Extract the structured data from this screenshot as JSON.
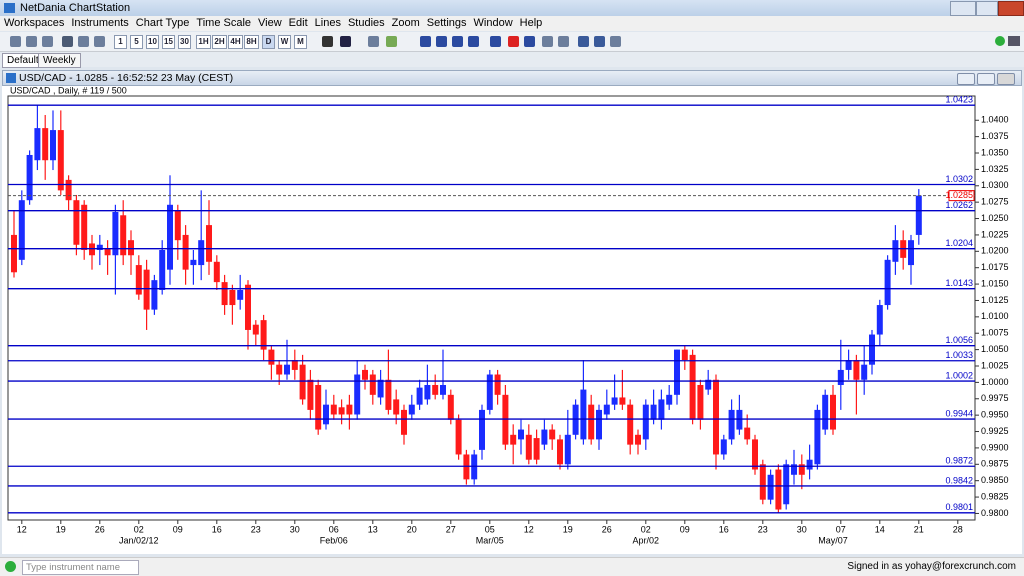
{
  "window": {
    "title": "NetDania ChartStation"
  },
  "menu": [
    "Workspaces",
    "Instruments",
    "Chart Type",
    "Time Scale",
    "View",
    "Edit",
    "Lines",
    "Studies",
    "Zoom",
    "Settings",
    "Window",
    "Help"
  ],
  "toolbar": {
    "timeframes": [
      "1",
      "5",
      "10",
      "15",
      "30",
      "1H",
      "2H",
      "4H",
      "8H",
      "D",
      "W",
      "M"
    ]
  },
  "tabs": [
    "Default",
    "Weekly"
  ],
  "chart_window": {
    "title": "USD/CAD - 1.0285 - 16:52:52  23 May (CEST)"
  },
  "status": {
    "search_placeholder": "Type instrument name",
    "signed_in": "Signed in as yohay@forexcrunch.com"
  },
  "chart_data": {
    "type": "candlestick",
    "title": "USD/CAD , Daily, # 119 / 500",
    "up_color": "#1a2cff",
    "down_color": "#ff1a1a",
    "level_color": "#0000c8",
    "categories": [
      null,
      "12",
      null,
      null,
      null,
      null,
      "19",
      null,
      null,
      null,
      null,
      "26",
      null,
      null,
      null,
      null,
      "02",
      null,
      null,
      null,
      null,
      "09",
      null,
      null,
      null,
      null,
      "16",
      null,
      null,
      null,
      null,
      "23",
      null,
      null,
      null,
      null,
      "30",
      null,
      null,
      null,
      null,
      "06",
      null,
      null,
      null,
      null,
      "13",
      null,
      null,
      null,
      null,
      "20",
      null,
      null,
      null,
      null,
      "27",
      null,
      null,
      null,
      null,
      "05",
      null,
      null,
      null,
      null,
      "12",
      null,
      null,
      null,
      null,
      "19",
      null,
      null,
      null,
      null,
      "26",
      null,
      null,
      null,
      null,
      "02",
      null,
      null,
      null,
      null,
      "09",
      null,
      null,
      null,
      null,
      "16",
      null,
      null,
      null,
      null,
      "23",
      null,
      null,
      null,
      null,
      "30",
      null,
      null,
      null,
      null,
      "07",
      null,
      null,
      null,
      null,
      "14",
      null,
      null,
      null,
      null,
      "21",
      null,
      null,
      null,
      null,
      "28"
    ],
    "x_sublabels": [
      null,
      null,
      null,
      null,
      null,
      null,
      null,
      null,
      null,
      null,
      null,
      null,
      null,
      null,
      null,
      null,
      "Jan/02/12",
      null,
      null,
      null,
      null,
      null,
      null,
      null,
      null,
      null,
      null,
      null,
      null,
      null,
      null,
      null,
      null,
      null,
      null,
      null,
      null,
      null,
      null,
      null,
      null,
      "Feb/06",
      null,
      null,
      null,
      null,
      null,
      null,
      null,
      null,
      null,
      null,
      null,
      null,
      null,
      null,
      null,
      null,
      null,
      null,
      null,
      "Mar/05",
      null,
      null,
      null,
      null,
      null,
      null,
      null,
      null,
      null,
      null,
      null,
      null,
      null,
      null,
      null,
      null,
      null,
      null,
      null,
      "Apr/02",
      null,
      null,
      null,
      null,
      null,
      null,
      null,
      null,
      null,
      null,
      null,
      null,
      null,
      null,
      null,
      null,
      null,
      null,
      null,
      null,
      null,
      null,
      null,
      "May/07",
      null,
      null,
      null,
      null,
      null,
      null,
      null,
      null,
      null,
      null,
      null,
      null,
      null,
      null,
      null
    ],
    "open": [
      1.0225,
      1.0187,
      1.0278,
      1.0339,
      1.0388,
      1.0339,
      1.0385,
      1.0309,
      1.0278,
      1.0271,
      1.0212,
      1.0202,
      1.0204,
      1.0194,
      1.0255,
      1.0217,
      1.0179,
      1.0172,
      1.0111,
      1.0141,
      1.0172,
      1.0263,
      1.0225,
      1.0179,
      1.0179,
      1.024,
      1.0184,
      1.0153,
      1.0141,
      1.0126,
      1.0149,
      1.0088,
      1.0095,
      1.005,
      1.0027,
      1.0012,
      1.0034,
      1.0027,
      1.0004,
      0.9996,
      0.9936,
      0.9966,
      0.9962,
      0.9966,
      0.9951,
      1.0019,
      1.0012,
      0.9977,
      1.0004,
      0.9974,
      0.9958,
      0.9951,
      0.9966,
      0.9974,
      0.9996,
      0.9981,
      0.9981,
      0.9943,
      0.989,
      0.9852,
      0.9897,
      0.9958,
      1.0012,
      0.9981,
      0.992,
      0.9913,
      0.992,
      0.9915,
      0.9905,
      0.9928,
      0.9913,
      0.9875,
      0.992,
      0.9913,
      0.9966,
      0.9913,
      0.9951,
      0.9966,
      0.9977,
      0.9966,
      0.992,
      0.9913,
      0.9943,
      0.9943,
      0.9966,
      0.9981,
      1.005,
      1.0042,
      0.9996,
      0.9989,
      1.0004,
      0.989,
      0.9913,
      0.9928,
      0.9931,
      0.9913,
      0.9875,
      0.9821,
      0.9867,
      0.9814,
      0.9859,
      0.9875,
      0.9867,
      0.9875,
      0.9928,
      0.9981,
      0.9996,
      1.0019,
      1.0034,
      1.0004,
      1.0027,
      1.0073,
      1.0118,
      1.0184,
      1.0217,
      1.0179,
      1.0225,
      null,
      null,
      null,
      null,
      null
    ],
    "high": [
      1.0263,
      1.0293,
      1.0354,
      1.0423,
      1.0408,
      1.0415,
      1.0415,
      1.0316,
      1.0286,
      1.0278,
      1.0225,
      1.0225,
      1.0217,
      1.0271,
      1.0278,
      1.0232,
      1.0194,
      1.0187,
      1.0164,
      1.0217,
      1.0316,
      1.0271,
      1.024,
      1.0202,
      1.0293,
      1.0278,
      1.0194,
      1.0164,
      1.0149,
      1.0164,
      1.0156,
      1.0095,
      1.0103,
      1.0057,
      1.0034,
      1.0065,
      1.005,
      1.0042,
      1.0019,
      1.0004,
      0.9989,
      0.9981,
      0.9974,
      0.9981,
      1.0034,
      1.0027,
      1.0019,
      1.0019,
      1.005,
      0.9989,
      0.9966,
      0.9981,
      1.0004,
      1.0027,
      1.0012,
      1.005,
      0.9989,
      0.9951,
      0.9897,
      0.9897,
      0.9966,
      1.0019,
      1.0019,
      0.9996,
      0.9936,
      0.9943,
      0.9936,
      0.9928,
      0.9943,
      0.9936,
      0.992,
      0.9958,
      0.9974,
      1.0034,
      0.9981,
      0.9966,
      0.9989,
      1.0012,
      1.0019,
      0.9974,
      0.9928,
      0.9974,
      0.9989,
      0.9989,
      0.9996,
      1.005,
      1.0057,
      1.005,
      1.0004,
      1.0019,
      1.0012,
      0.992,
      0.9974,
      0.9981,
      0.9951,
      0.992,
      0.9882,
      0.9867,
      0.9875,
      0.9882,
      0.9897,
      0.989,
      0.9905,
      0.9966,
      0.9989,
      0.9996,
      1.0065,
      1.005,
      1.0042,
      1.0057,
      1.008,
      1.0126,
      1.0194,
      1.024,
      1.0232,
      1.0225,
      1.0295,
      null,
      null,
      null,
      null,
      null
    ],
    "low": [
      1.016,
      1.0179,
      1.0271,
      1.0324,
      1.0309,
      1.0324,
      1.0286,
      1.0263,
      1.0194,
      1.0187,
      1.0172,
      1.0179,
      1.0164,
      1.0134,
      1.0179,
      1.0164,
      1.0126,
      1.008,
      1.0103,
      1.0134,
      1.0149,
      1.0187,
      1.0149,
      1.0149,
      1.0156,
      1.0164,
      1.0141,
      1.0103,
      1.0088,
      1.0111,
      1.005,
      1.0057,
      1.0034,
      1.0004,
      0.9996,
      1.0004,
      1.0004,
      0.9966,
      0.9943,
      0.992,
      0.9928,
      0.9943,
      0.9936,
      0.9928,
      0.9943,
      0.9989,
      0.9966,
      0.9966,
      0.9951,
      0.9936,
      0.9905,
      0.9943,
      0.9958,
      0.9966,
      0.9974,
      0.9974,
      0.9936,
      0.9882,
      0.9844,
      0.9844,
      0.9882,
      0.9951,
      0.9966,
      0.9897,
      0.9875,
      0.989,
      0.9875,
      0.9875,
      0.9897,
      0.9897,
      0.9867,
      0.9867,
      0.9913,
      0.9905,
      0.9905,
      0.9897,
      0.9943,
      0.9958,
      0.9958,
      0.989,
      0.989,
      0.9897,
      0.9936,
      0.9928,
      0.9958,
      0.9966,
      1.0019,
      0.9936,
      0.9928,
      0.9981,
      0.9867,
      0.9882,
      0.9905,
      0.992,
      0.9905,
      0.9859,
      0.9814,
      0.9814,
      0.98,
      0.9806,
      0.9844,
      0.9837,
      0.9852,
      0.9867,
      0.992,
      0.992,
      0.9958,
      1.0004,
      0.9951,
      0.9981,
      1.0012,
      1.0057,
      1.0111,
      1.0164,
      1.0172,
      1.0149,
      1.021,
      null,
      null,
      null,
      null,
      null
    ],
    "close": [
      1.0168,
      1.0278,
      1.0347,
      1.0388,
      1.0339,
      1.0385,
      1.0293,
      1.0278,
      1.021,
      1.0202,
      1.0194,
      1.021,
      1.0194,
      1.026,
      1.0194,
      1.0194,
      1.0134,
      1.0111,
      1.0156,
      1.0202,
      1.0271,
      1.0217,
      1.0172,
      1.0187,
      1.0217,
      1.0184,
      1.0153,
      1.0118,
      1.0118,
      1.0141,
      1.008,
      1.0073,
      1.005,
      1.0027,
      1.0012,
      1.0027,
      1.0019,
      0.9974,
      0.9958,
      0.9928,
      0.9966,
      0.9951,
      0.9951,
      0.9951,
      1.0012,
      1.0004,
      0.9981,
      1.0004,
      0.9958,
      0.9951,
      0.992,
      0.9966,
      0.9992,
      0.9996,
      0.9981,
      0.9996,
      0.9943,
      0.989,
      0.9852,
      0.989,
      0.9958,
      1.0012,
      0.9981,
      0.9905,
      0.9905,
      0.9928,
      0.9882,
      0.9882,
      0.9928,
      0.9913,
      0.9875,
      0.992,
      0.9966,
      0.9989,
      0.9913,
      0.9958,
      0.9966,
      0.9977,
      0.9966,
      0.9905,
      0.9905,
      0.9966,
      0.9966,
      0.9974,
      0.9981,
      1.005,
      1.0034,
      0.9943,
      0.9943,
      1.0004,
      0.989,
      0.9913,
      0.9958,
      0.9958,
      0.9913,
      0.9867,
      0.9821,
      0.9859,
      0.9806,
      0.9875,
      0.9875,
      0.9859,
      0.9882,
      0.9958,
      0.9981,
      0.9928,
      1.0019,
      1.0034,
      1.0004,
      1.0027,
      1.0073,
      1.0118,
      1.0187,
      1.0217,
      1.019,
      1.0217,
      1.0285,
      null,
      null,
      null,
      null,
      null
    ],
    "levels": [
      1.0423,
      1.0302,
      1.0262,
      1.0204,
      1.0143,
      1.0056,
      1.0033,
      1.0002,
      0.9944,
      0.9872,
      0.9842,
      0.9801
    ],
    "current_price": 1.0285,
    "ylim": [
      0.979,
      1.0437
    ],
    "yticks": [
      {
        "value": 0.98,
        "label": "0.9800"
      },
      0.9825,
      {
        "value": 0.985,
        "label": "0.9850"
      },
      0.9875,
      {
        "value": 0.99,
        "label": "0.9900"
      },
      0.9925,
      {
        "value": 0.995,
        "label": "0.9950"
      },
      0.9975,
      {
        "value": 1,
        "label": "1.0000"
      },
      1.0025,
      {
        "value": 1.005,
        "label": "1.0050"
      },
      1.0075,
      {
        "value": 1.01,
        "label": "1.0100"
      },
      1.0125,
      {
        "value": 1.015,
        "label": "1.0150"
      },
      1.0175,
      {
        "value": 1.02,
        "label": "1.0200"
      },
      1.0225,
      {
        "value": 1.025,
        "label": "1.0250"
      },
      1.0275,
      {
        "value": 1.03,
        "label": "1.0300"
      },
      1.0325,
      {
        "value": 1.035,
        "label": "1.0350"
      },
      1.0375,
      {
        "value": 1.04,
        "label": "1.0400"
      }
    ]
  }
}
